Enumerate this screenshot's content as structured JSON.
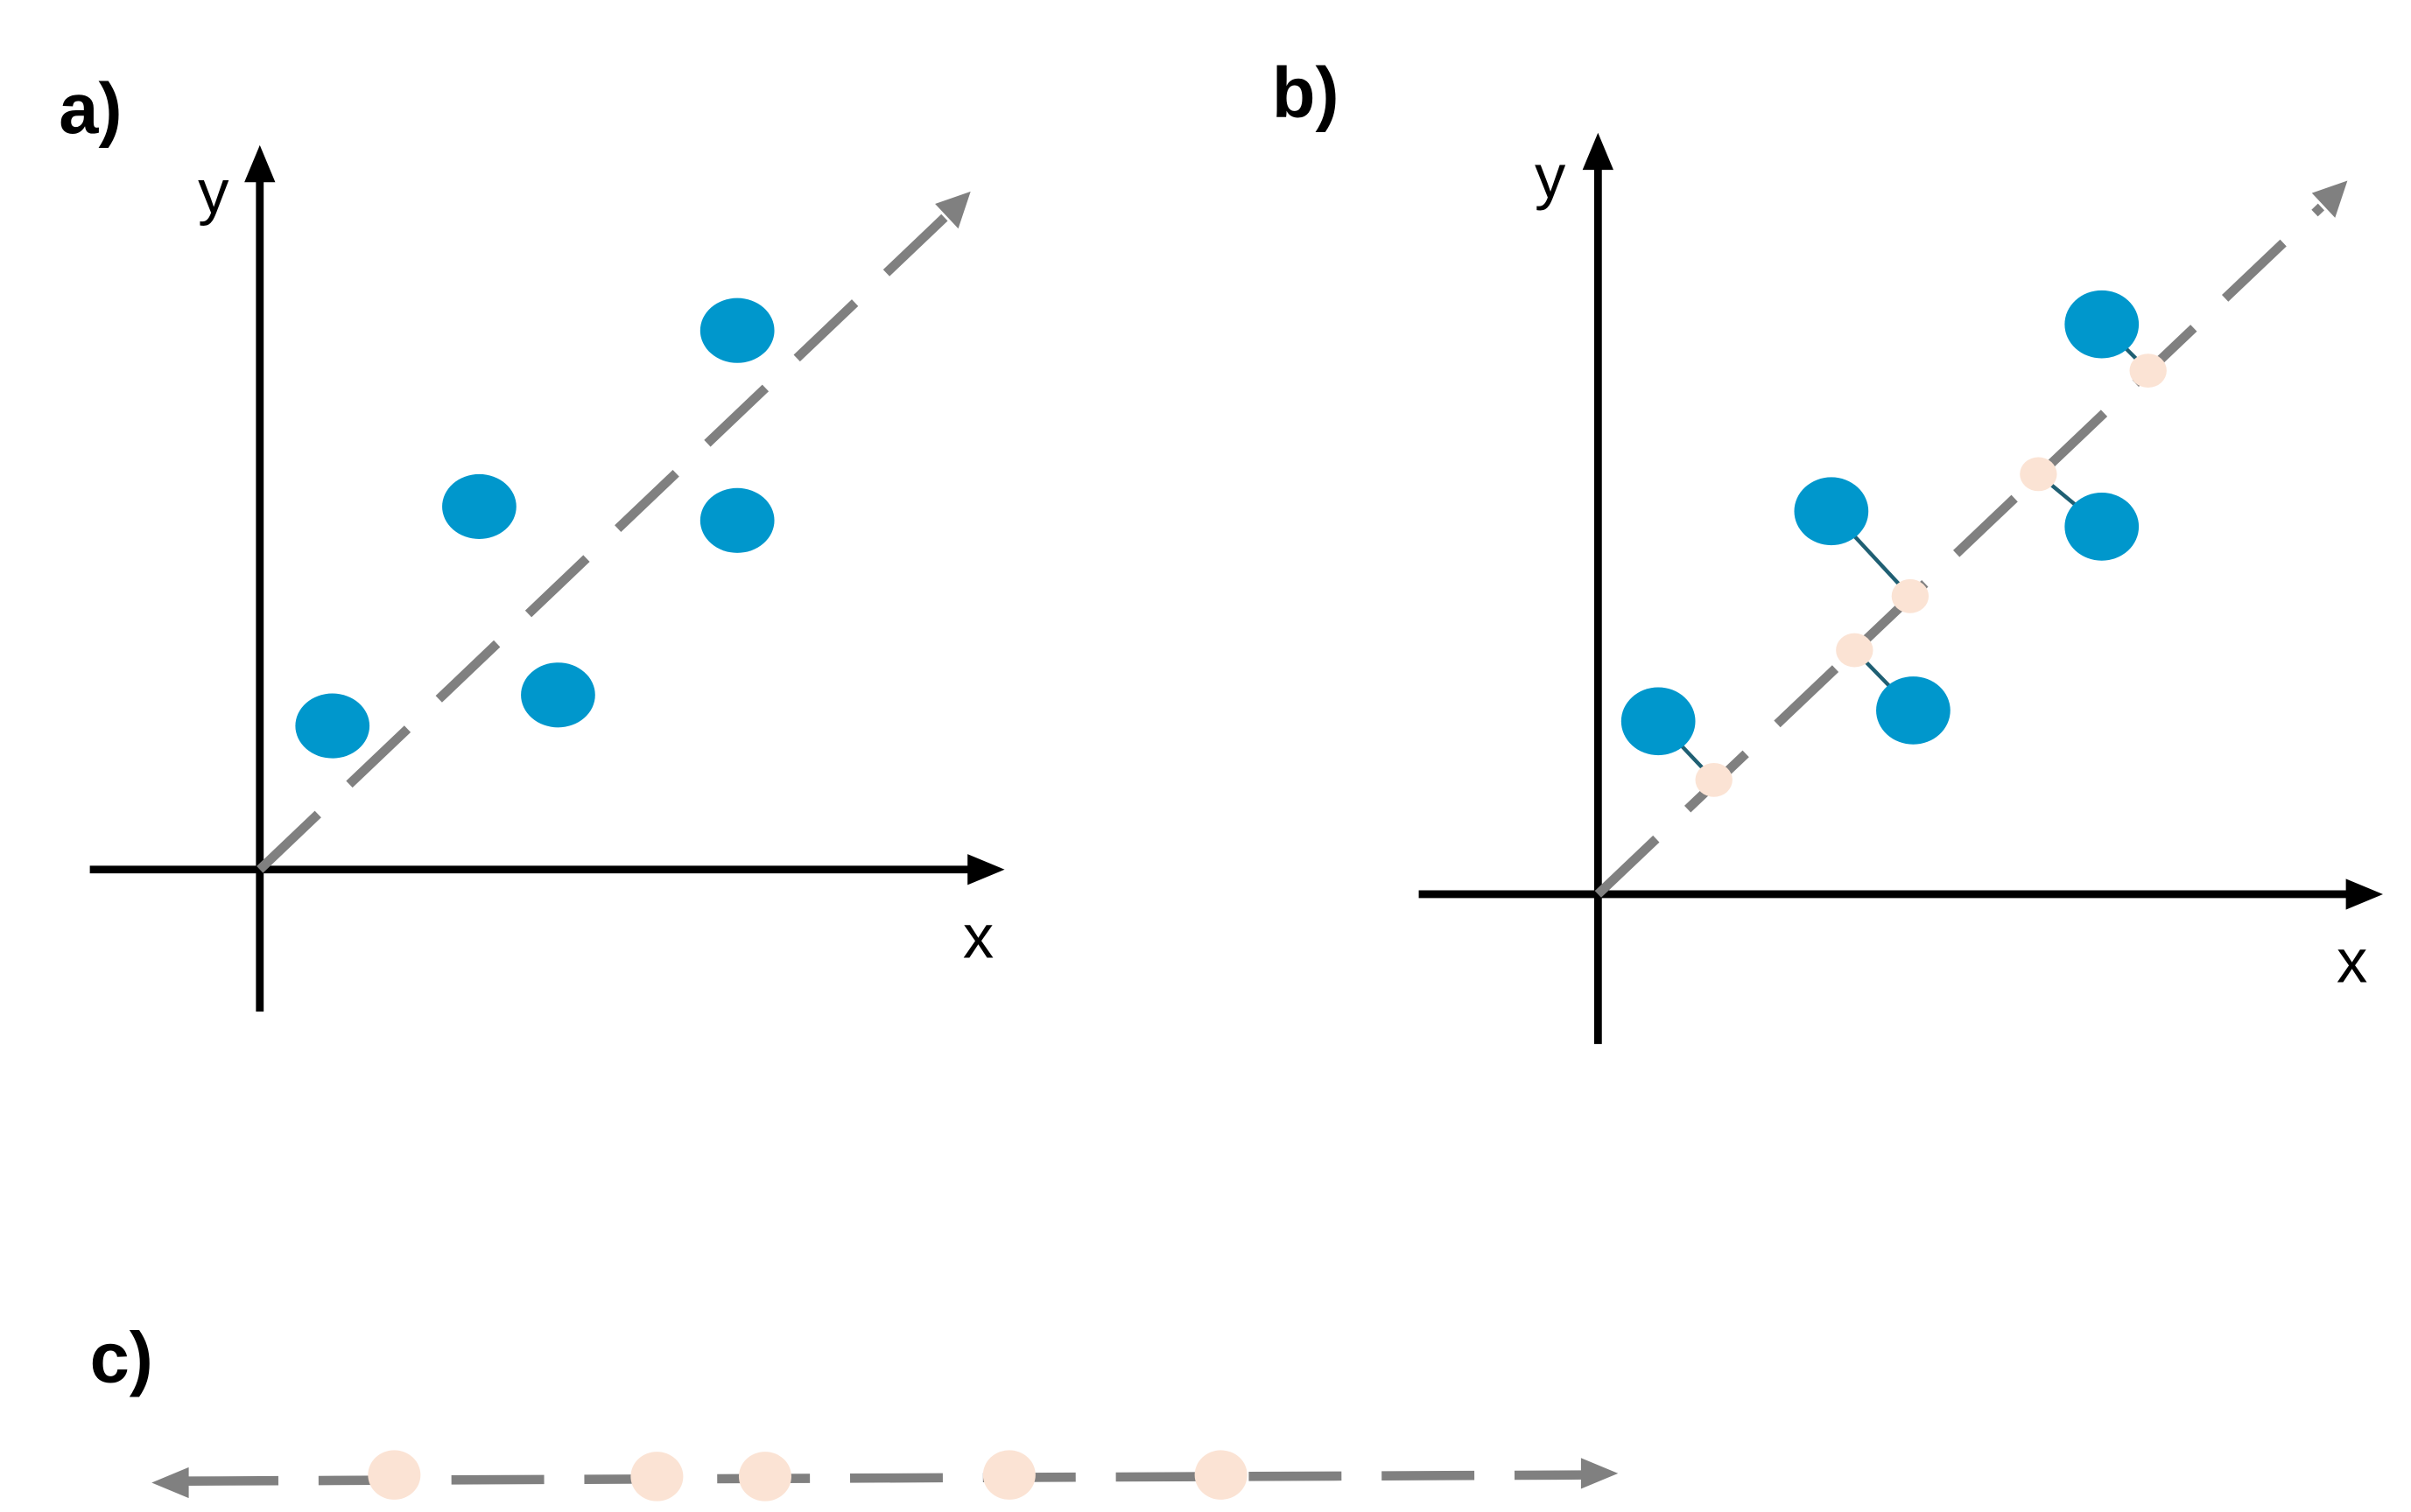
{
  "panels": [
    {
      "label": "a)",
      "y_axis": "y",
      "x_axis": "x"
    },
    {
      "label": "b)",
      "y_axis": "y",
      "x_axis": "x"
    },
    {
      "label": "c)"
    }
  ]
}
